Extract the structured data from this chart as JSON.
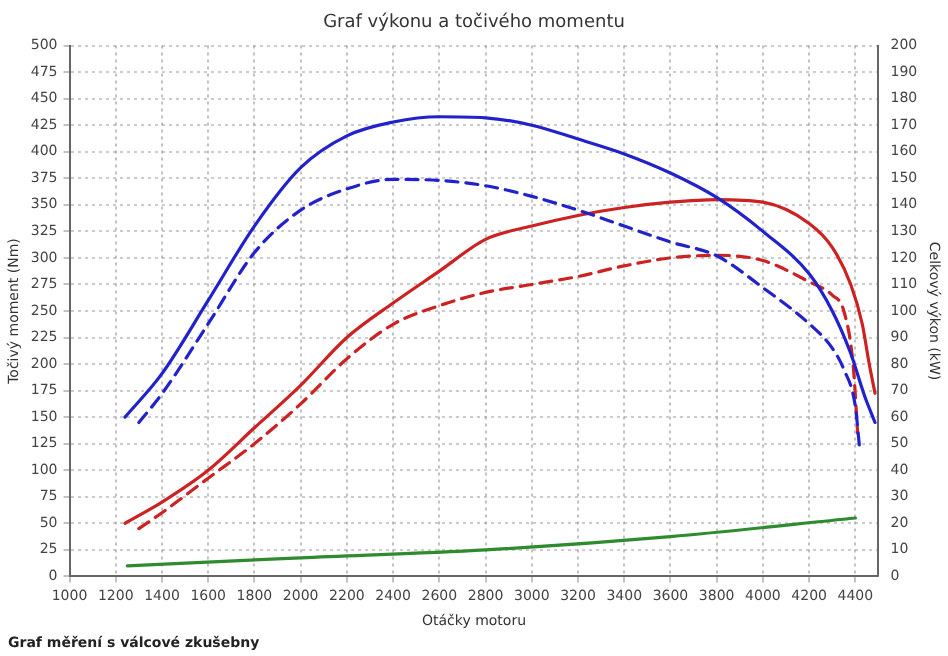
{
  "chart_data": {
    "type": "line",
    "title": "Graf výkonu a točivého momentu",
    "xlabel": "Otáčky motoru",
    "ylabel": "Točivý moment (Nm)",
    "y2label": "Celkový výkon (kW)",
    "annotations": [
      "Graf měření s válcové zkušebny"
    ],
    "xlim": [
      1000,
      4500
    ],
    "xticks": [
      1000,
      1200,
      1400,
      1600,
      1800,
      2000,
      2200,
      2400,
      2600,
      2800,
      3000,
      3200,
      3400,
      3600,
      3800,
      4000,
      4200,
      4400
    ],
    "ylim": [
      0,
      500
    ],
    "yticks": [
      0,
      25,
      50,
      75,
      100,
      125,
      150,
      175,
      200,
      225,
      250,
      275,
      300,
      325,
      350,
      375,
      400,
      425,
      450,
      475,
      500
    ],
    "y2lim": [
      0,
      200
    ],
    "y2ticks": [
      0,
      10,
      20,
      30,
      40,
      50,
      60,
      70,
      80,
      90,
      100,
      110,
      120,
      130,
      140,
      150,
      160,
      170,
      180,
      190,
      200
    ],
    "grid": true,
    "legend": false,
    "marker": "none",
    "series": [
      {
        "color": "#2222cc",
        "line_style": "solid",
        "x": [
          1240,
          1400,
          1600,
          1800,
          2000,
          2200,
          2400,
          2600,
          2800,
          3000,
          3200,
          3400,
          3600,
          3800,
          4000,
          4200,
          4300,
          4380,
          4440,
          4485
        ],
        "values": [
          150,
          191,
          260,
          330,
          385,
          415,
          428,
          433,
          432,
          425,
          412,
          398,
          380,
          357,
          325,
          285,
          250,
          210,
          170,
          145
        ]
      },
      {
        "color": "#2222cc",
        "line_style": "dashed",
        "x": [
          1300,
          1400,
          1600,
          1800,
          2000,
          2200,
          2400,
          2600,
          2800,
          3000,
          3200,
          3400,
          3600,
          3800,
          4000,
          4200,
          4300,
          4350,
          4400,
          4420
        ],
        "values": [
          145,
          172,
          238,
          305,
          345,
          365,
          374,
          373,
          368,
          358,
          345,
          330,
          315,
          302,
          272,
          238,
          215,
          195,
          160,
          117
        ]
      },
      {
        "color": "#cc2222",
        "axis": "y2",
        "line_style": "solid",
        "x": [
          1240,
          1400,
          1600,
          1800,
          2000,
          2200,
          2400,
          2600,
          2800,
          3000,
          3200,
          3400,
          3600,
          3800,
          4000,
          4200,
          4300,
          4380,
          4430,
          4460,
          4485
        ],
        "values": [
          20,
          28,
          40,
          56,
          72,
          90,
          103,
          115,
          127,
          132,
          136,
          139,
          141,
          142,
          141,
          133,
          124,
          110,
          95,
          80,
          69
        ]
      },
      {
        "color": "#cc2222",
        "axis": "y2",
        "line_style": "dashed",
        "x": [
          1300,
          1400,
          1600,
          1800,
          2000,
          2200,
          2400,
          2600,
          2800,
          3000,
          3200,
          3400,
          3600,
          3800,
          4000,
          4200,
          4300,
          4350,
          4390,
          4410
        ],
        "values": [
          18,
          24,
          37,
          50,
          65,
          82,
          95,
          102,
          107,
          110,
          113,
          117,
          120,
          121,
          119,
          111,
          106,
          100,
          80,
          54
        ]
      },
      {
        "color": "#2e8b2e",
        "axis": "y2",
        "line_style": "solid",
        "x": [
          1250,
          2000,
          2800,
          3600,
          4400
        ],
        "values": [
          4,
          7,
          10,
          15,
          22
        ]
      }
    ]
  }
}
